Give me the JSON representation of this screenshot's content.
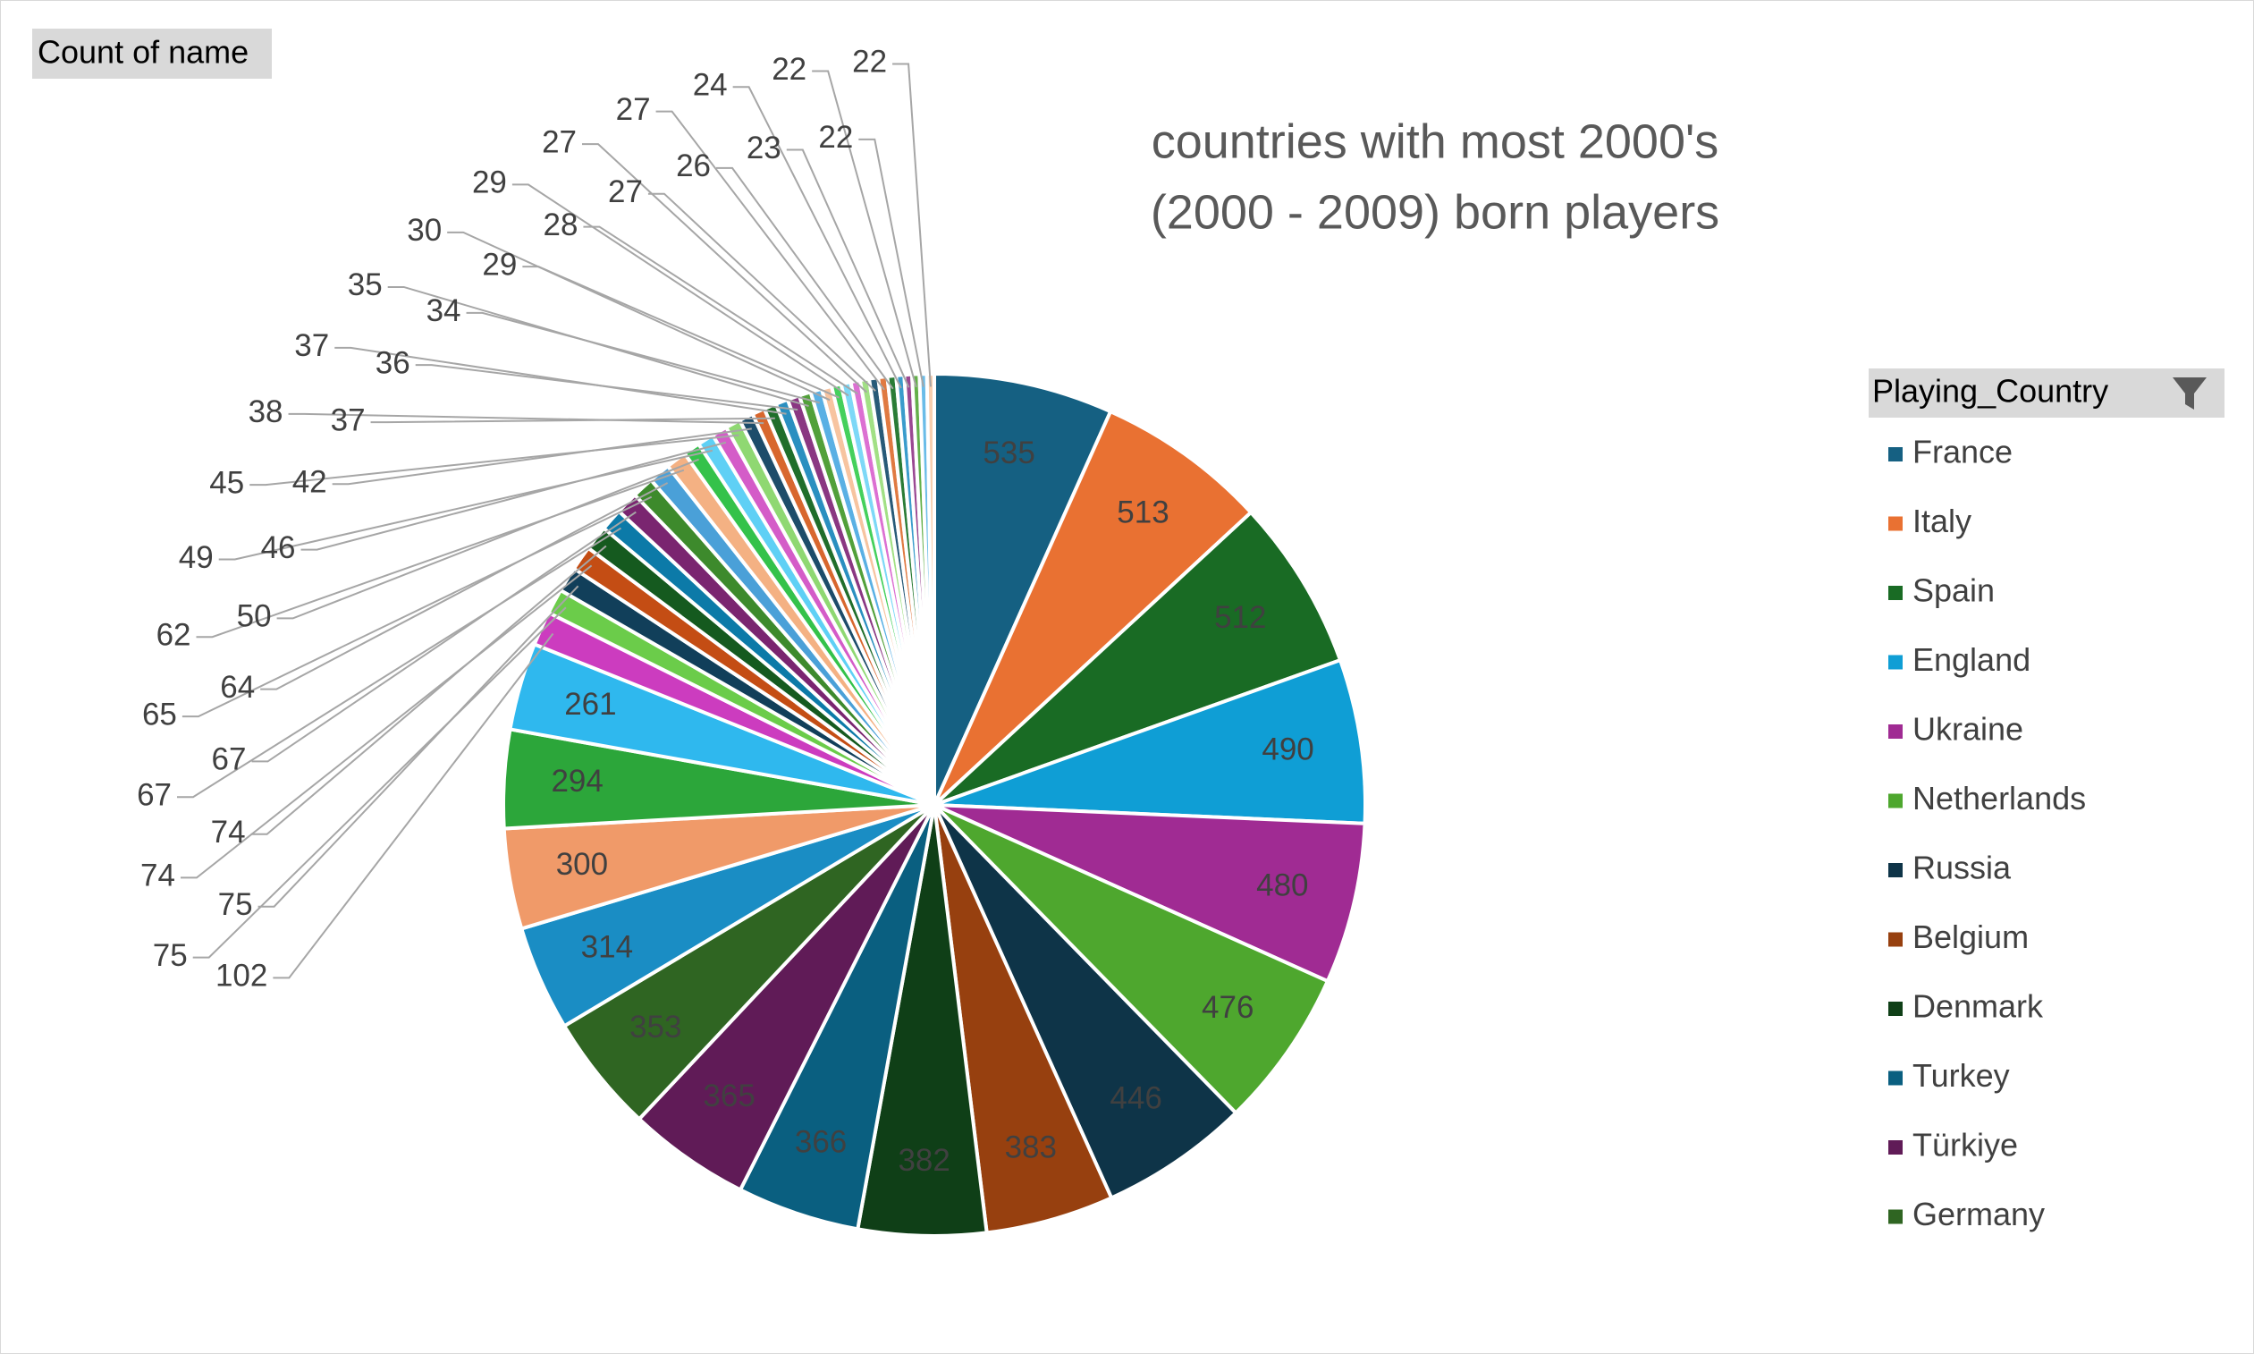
{
  "chart_data": {
    "type": "pie",
    "title": "countries with most 2000's",
    "subtitle": "(2000 - 2009) born players",
    "field_button": "Count of name",
    "legend_title": "Playing_Country",
    "legend_position": "right",
    "categories": [
      "France",
      "Italy",
      "Spain",
      "England",
      "Ukraine",
      "Netherlands",
      "Russia",
      "Belgium",
      "Denmark",
      "Turkey",
      "Türkiye",
      "Germany",
      null,
      null,
      null,
      null,
      null,
      null,
      null,
      null,
      null,
      null,
      null,
      null,
      null,
      null,
      null,
      null,
      null,
      null,
      null,
      null,
      null,
      null,
      null,
      null,
      null,
      null,
      null,
      null,
      null,
      null,
      null,
      null,
      null,
      null,
      null,
      null,
      null,
      null
    ],
    "values": [
      535,
      513,
      512,
      490,
      480,
      476,
      446,
      383,
      382,
      366,
      365,
      353,
      314,
      300,
      294,
      261,
      102,
      75,
      75,
      74,
      74,
      67,
      67,
      65,
      64,
      62,
      50,
      49,
      46,
      45,
      42,
      38,
      37,
      37,
      36,
      35,
      34,
      30,
      29,
      29,
      28,
      27,
      27,
      27,
      26,
      24,
      23,
      22,
      22,
      22
    ],
    "colors": [
      "#156082",
      "#e97132",
      "#196b24",
      "#0f9ed5",
      "#a02b93",
      "#4ea72e",
      "#0e3448",
      "#97400f",
      "#0f3f17",
      "#0a5f80",
      "#601b57",
      "#2f6522",
      "#1a8dc4",
      "#f09a69",
      "#2ca63a",
      "#2fb8ee",
      "#cc3cbf",
      "#6bcc4a",
      "#113f5a",
      "#c44d14",
      "#155a1f",
      "#0c7aa8",
      "#7a2570",
      "#3d8a2c",
      "#4aa0d8",
      "#f4b183",
      "#34c24a",
      "#5fd0f5",
      "#d45cc8",
      "#8fd872",
      "#1d4c6a",
      "#d8672e",
      "#206e2b",
      "#2a8fc0",
      "#8a3782",
      "#52a03a",
      "#5ab0e4",
      "#f7c4a0",
      "#45d05c",
      "#7dd8f7",
      "#dc70d2",
      "#a2e085",
      "#285a78",
      "#e07a42",
      "#2a7c36",
      "#3a9ccc",
      "#9a4892",
      "#64b04a",
      "#6abce8",
      "#f8d0b0"
    ]
  }
}
